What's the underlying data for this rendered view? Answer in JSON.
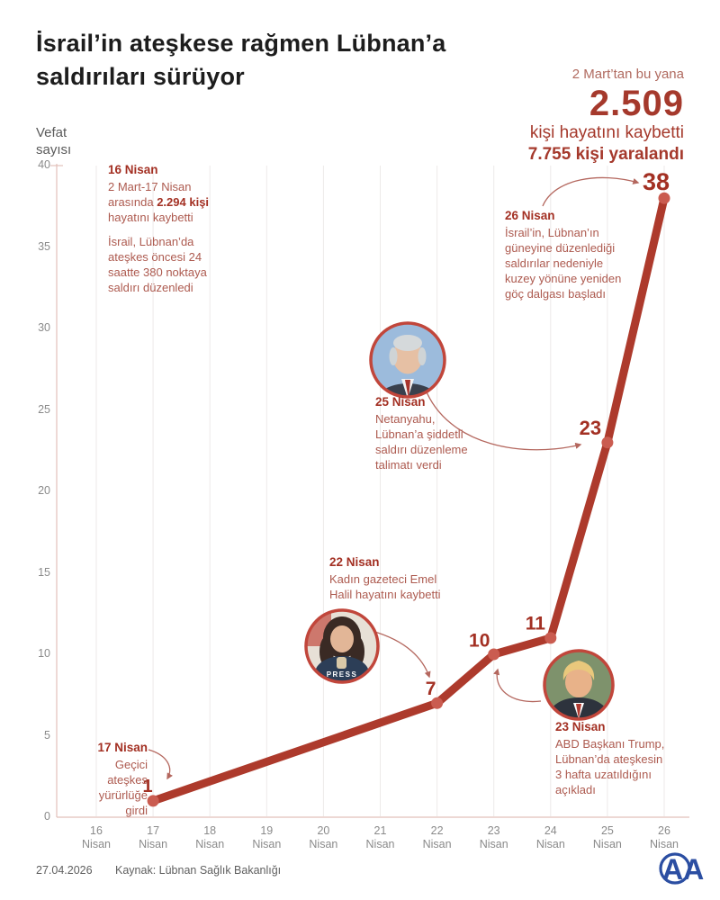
{
  "title": {
    "line1": "İsrail’in ateşkese rağmen Lübnan’a",
    "line2": "saldırıları sürüyor"
  },
  "summary": {
    "since": "2 Mart’tan bu yana",
    "deaths": "2.509",
    "deaths_label": "kişi hayatını kaybetti",
    "injured": "7.755 kişi yaralandı"
  },
  "ylabel": {
    "line1": "Vefat",
    "line2": "sayısı"
  },
  "chart_data": {
    "type": "line",
    "title": "İsrail’in ateşkese rağmen Lübnan’a saldırıları sürüyor",
    "ylabel": "Vefat sayısı",
    "xlabel": "",
    "ylim": [
      0,
      40
    ],
    "y_ticks": [
      0,
      5,
      10,
      15,
      20,
      25,
      30,
      35,
      40
    ],
    "grid": "vertical",
    "categories": [
      "16 Nisan",
      "17 Nisan",
      "18 Nisan",
      "19 Nisan",
      "20 Nisan",
      "21 Nisan",
      "22 Nisan",
      "23 Nisan",
      "24 Nisan",
      "25 Nisan",
      "26 Nisan"
    ],
    "series": [
      {
        "name": "Vefat sayısı",
        "points": [
          {
            "x": "17 Nisan",
            "y": 1
          },
          {
            "x": "22 Nisan",
            "y": 7
          },
          {
            "x": "23 Nisan",
            "y": 10
          },
          {
            "x": "24 Nisan",
            "y": 11
          },
          {
            "x": "25 Nisan",
            "y": 23
          },
          {
            "x": "26 Nisan",
            "y": 38
          }
        ]
      }
    ]
  },
  "annotations": {
    "apr16": {
      "date": "16 Nisan",
      "body1_pre": "2 Mart-17 Nisan arasında ",
      "body1_bold": "2.294 kişi",
      "body1_post": " hayatını kaybetti",
      "body2": "İsrail, Lübnan’da ateşkes öncesi 24 saatte 380 noktaya saldırı düzenledi"
    },
    "apr17": {
      "date": "17 Nisan",
      "body": "Geçici ateşkes yürürlüğe girdi"
    },
    "apr22": {
      "date": "22 Nisan",
      "body": "Kadın gazeteci Emel Halil hayatını kaybetti",
      "press_label": "PRESS"
    },
    "apr23": {
      "date": "23 Nisan",
      "body": "ABD Başkanı Trump, Lübnan’da ateşkesin 3 hafta uzatıldığını açıkladı"
    },
    "apr25": {
      "date": "25 Nisan",
      "body": "Netanyahu, Lübnan’a şiddetli saldırı düzenleme talimatı verdi"
    },
    "apr26": {
      "date": "26 Nisan",
      "body": "İsrail’in, Lübnan’ın güneyine düzenlediği saldırılar nedeniyle kuzey yönüne yeniden göç dalgası başladı"
    }
  },
  "footer": {
    "date": "27.04.2026",
    "source": "Kaynak: Lübnan Sağlık Bakanlığı",
    "logo": "AA"
  },
  "colors": {
    "line": "#ad3a2c",
    "marker": "#ca5c50",
    "value_label": "#a33023",
    "accent_dark": "#a5392c",
    "note_body": "#ad5a4f",
    "axis": "#e2c0ba",
    "grid": "#edeae9",
    "tick": "#8a8a8a",
    "logo_blue": "#2b4ea2"
  }
}
